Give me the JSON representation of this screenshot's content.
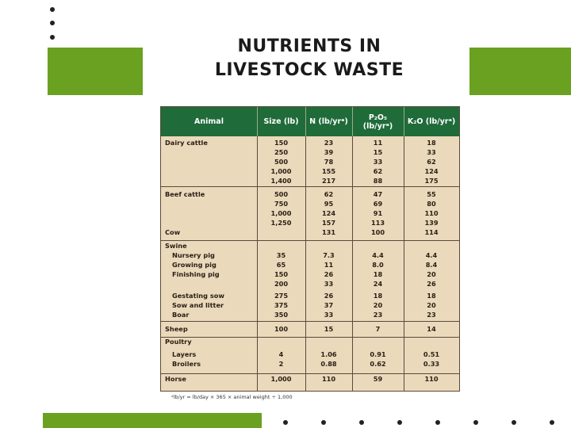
{
  "title_line1": "NUTRIENTS IN",
  "title_line2": "LIVESTOCK WASTE",
  "accent_color": "#6aa121",
  "header_color": "#1f6b3a",
  "table": {
    "headers": [
      "Animal",
      "Size (lb)",
      "N (lb/yrᵃ)",
      "P₂O₅ (lb/yrᵃ)",
      "K₂O (lb/yrᵃ)"
    ],
    "rows": [
      [
        "Dairy cattle",
        "150",
        "23",
        "11",
        "18"
      ],
      [
        "",
        "250",
        "39",
        "15",
        "33"
      ],
      [
        "",
        "500",
        "78",
        "33",
        "62"
      ],
      [
        "",
        "1,000",
        "155",
        "62",
        "124"
      ],
      [
        "",
        "1,400",
        "217",
        "88",
        "175"
      ],
      [
        "Beef cattle",
        "500",
        "62",
        "47",
        "55"
      ],
      [
        "",
        "750",
        "95",
        "69",
        "80"
      ],
      [
        "",
        "1,000",
        "124",
        "91",
        "110"
      ],
      [
        "",
        "1,250",
        "157",
        "113",
        "139"
      ],
      [
        "Cow",
        "",
        "131",
        "100",
        "114"
      ],
      [
        "Swine",
        "",
        "",
        "",
        ""
      ],
      [
        "Nursery pig",
        "35",
        "7.3",
        "4.4",
        "4.4"
      ],
      [
        "Growing pig",
        "65",
        "11",
        "8.0",
        "8.4"
      ],
      [
        "Finishing pig",
        "150",
        "26",
        "18",
        "20"
      ],
      [
        "",
        "200",
        "33",
        "24",
        "26"
      ],
      [
        "Gestating sow",
        "275",
        "26",
        "18",
        "18"
      ],
      [
        "Sow and litter",
        "375",
        "37",
        "20",
        "20"
      ],
      [
        "Boar",
        "350",
        "33",
        "23",
        "23"
      ],
      [
        "Sheep",
        "100",
        "15",
        "7",
        "14"
      ],
      [
        "Poultry",
        "",
        "",
        "",
        ""
      ],
      [
        "Layers",
        "4",
        "1.06",
        "0.91",
        "0.51"
      ],
      [
        "Broilers",
        "2",
        "0.88",
        "0.62",
        "0.33"
      ],
      [
        "Horse",
        "1,000",
        "110",
        "59",
        "110"
      ]
    ]
  },
  "footnote": "ᵃlb/yr = lb/day × 365 × animal weight ÷ 1,000"
}
